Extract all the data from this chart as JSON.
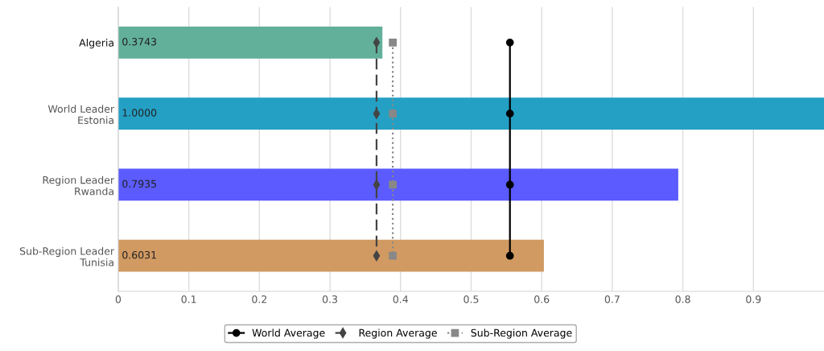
{
  "chart_data": {
    "type": "bar",
    "orientation": "horizontal",
    "categories": [
      "Algeria",
      "World Leader\nEstonia",
      "Region Leader\nRwanda",
      "Sub-Region Leader\nTunisia"
    ],
    "xlim": [
      0,
      1.0
    ],
    "xticks": [
      0,
      0.1,
      0.2,
      0.3,
      0.4,
      0.5,
      0.6,
      0.7,
      0.8,
      0.9
    ],
    "grid": "x",
    "legend": "bottom",
    "series": [
      {
        "values": [
          0.3743,
          1.0,
          0.7935,
          0.6031
        ],
        "colors": [
          "#62b09a",
          "#24a0c4",
          "#5b5bff",
          "#d19a62"
        ],
        "value_labels": [
          "0.3743",
          "1.0000",
          "0.7935",
          "0.6031"
        ]
      },
      {
        "type": "line",
        "name": "World Average",
        "color": "#000000",
        "values": [
          0.555,
          0.555,
          0.555,
          0.555
        ],
        "marker": "circle",
        "line_style": "solid"
      },
      {
        "type": "line",
        "name": "Region Average",
        "color": "#444444",
        "values": [
          0.366,
          0.366,
          0.366,
          0.366
        ],
        "marker": "diamond",
        "line_style": "dashed"
      },
      {
        "type": "line",
        "name": "Sub-Region Average",
        "color": "#888888",
        "values": [
          0.389,
          0.389,
          0.389,
          0.389
        ],
        "marker": "square",
        "line_style": "dotted"
      }
    ]
  }
}
